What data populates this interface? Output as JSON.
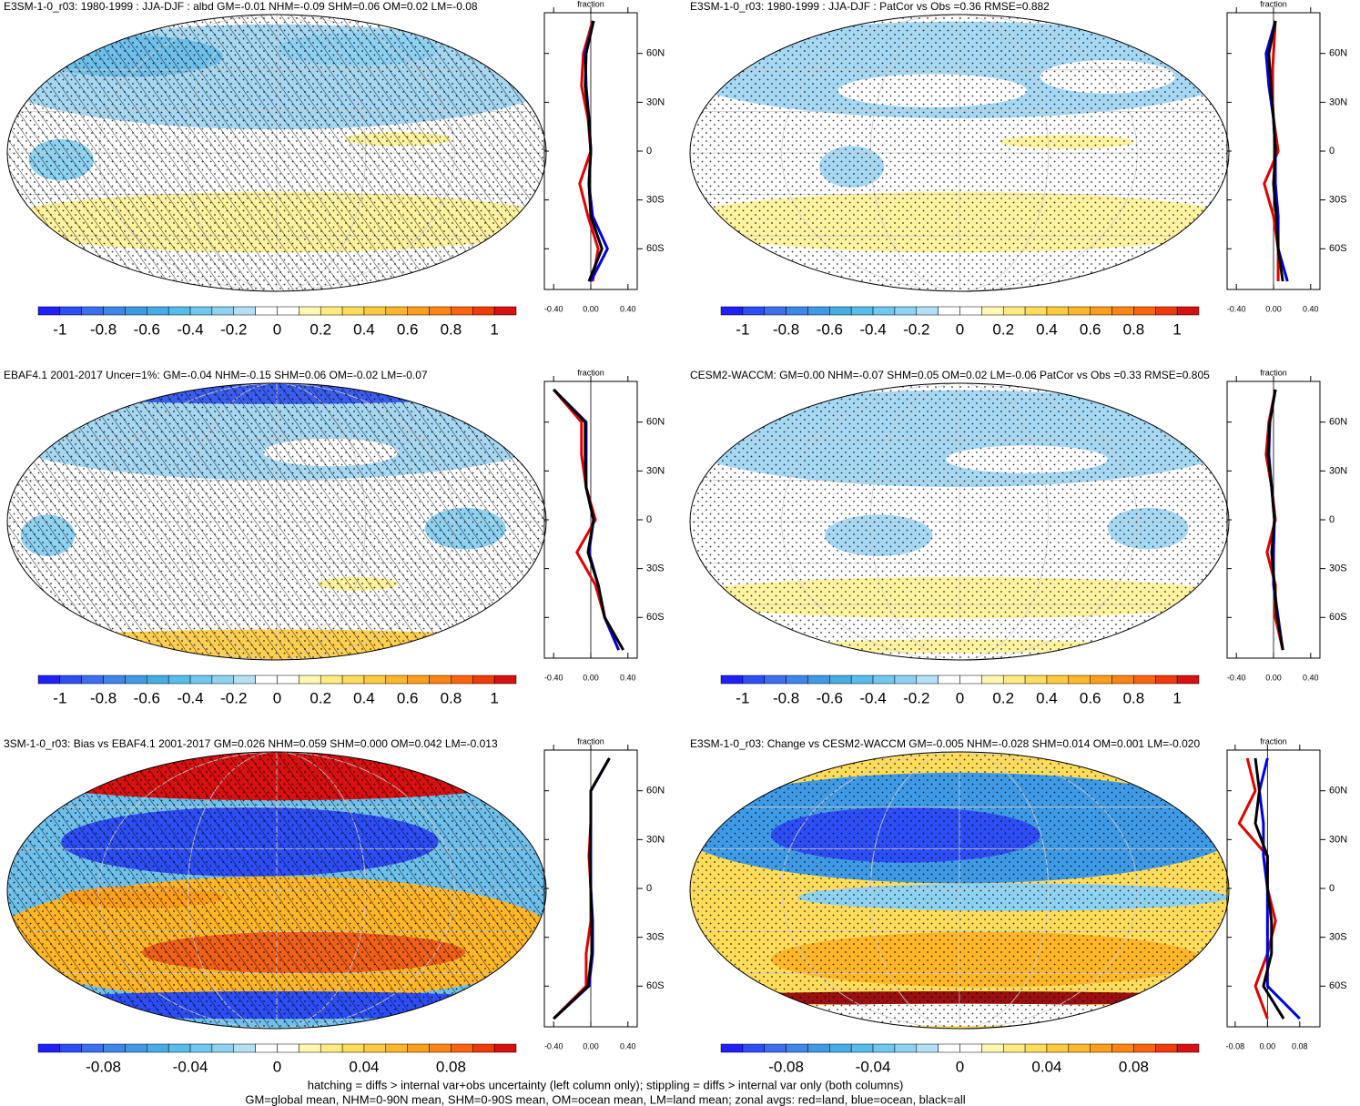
{
  "panels": [
    {
      "title": "E3SM-1-0_r03: 1980-1999 : JJA-DJF : albd GM=-0.01 NHM=-0.09 SHM=0.06 OM=0.02 LM=-0.08",
      "hatched": true,
      "colorbar": {
        "clim": [
          -1.1,
          1.1
        ],
        "ticks": [
          -1,
          -0.8,
          -0.6,
          -0.4,
          -0.2,
          0,
          0.2,
          0.4,
          0.6,
          0.8,
          1
        ],
        "colors": [
          "#1f1fff",
          "#2d4ef7",
          "#3c6ef0",
          "#3d86ea",
          "#3f9ae6",
          "#45ace6",
          "#55bcec",
          "#6ec8f0",
          "#8ed2f2",
          "#b4e0f5",
          "#ffffff",
          "#ffffff",
          "#fff8b0",
          "#ffeb80",
          "#ffdc5a",
          "#ffca3c",
          "#ffb628",
          "#ff9e1a",
          "#ff8412",
          "#ff640c",
          "#f03a08",
          "#d81010"
        ]
      },
      "zonal": {
        "type": "line",
        "x_label": "fraction",
        "xlim": [
          -0.5,
          0.5
        ],
        "xticks": [
          {
            "value": -0.4,
            "label": "-0.40"
          },
          {
            "value": 0,
            "label": "0.00"
          },
          {
            "value": 0.4,
            "label": "0.40"
          }
        ],
        "ylim": [
          -85,
          85
        ],
        "yticks": [
          {
            "value": 60,
            "label": "60N"
          },
          {
            "value": 30,
            "label": "30N"
          },
          0,
          {
            "value": -30,
            "label": "30S"
          },
          {
            "value": -60,
            "label": "60S"
          }
        ],
        "y": [
          -80,
          -60,
          -40,
          -20,
          0,
          20,
          40,
          60,
          80
        ],
        "series": [
          {
            "color": "#e00000",
            "values": [
              0.02,
              0.08,
              -0.03,
              -0.12,
              0.0,
              -0.03,
              -0.1,
              -0.08,
              0.02
            ]
          },
          {
            "color": "#0000e0",
            "values": [
              0.0,
              0.18,
              0.02,
              -0.02,
              0.0,
              -0.02,
              -0.05,
              -0.06,
              0.03
            ]
          },
          {
            "color": "#000000",
            "values": [
              -0.02,
              0.12,
              0.0,
              -0.02,
              0.0,
              -0.02,
              -0.06,
              -0.05,
              0.03
            ]
          }
        ]
      }
    },
    {
      "title": "E3SM-1-0_r03: 1980-1999 : JJA-DJF : PatCor vs Obs =0.36 RMSE=0.882",
      "hatched": false,
      "colorbar": {
        "clim": [
          -1.1,
          1.1
        ],
        "ticks": [
          -1,
          -0.8,
          -0.6,
          -0.4,
          -0.2,
          0,
          0.2,
          0.4,
          0.6,
          0.8,
          1
        ],
        "colors": [
          "#1f1fff",
          "#2d4ef7",
          "#3c6ef0",
          "#3d86ea",
          "#3f9ae6",
          "#45ace6",
          "#55bcec",
          "#6ec8f0",
          "#8ed2f2",
          "#b4e0f5",
          "#ffffff",
          "#ffffff",
          "#fff8b0",
          "#ffeb80",
          "#ffdc5a",
          "#ffca3c",
          "#ffb628",
          "#ff9e1a",
          "#ff8412",
          "#ff640c",
          "#f03a08",
          "#d81010"
        ]
      },
      "zonal": {
        "type": "line",
        "x_label": "fraction",
        "xlim": [
          -0.5,
          0.5
        ],
        "xticks": [
          {
            "value": -0.4,
            "label": "-0.40"
          },
          {
            "value": 0,
            "label": "0.00"
          },
          {
            "value": 0.4,
            "label": "0.40"
          }
        ],
        "ylim": [
          -85,
          85
        ],
        "yticks": [
          {
            "value": 60,
            "label": "60N"
          },
          {
            "value": 30,
            "label": "30N"
          },
          0,
          {
            "value": -30,
            "label": "30S"
          },
          {
            "value": -60,
            "label": "60S"
          }
        ],
        "y": [
          -80,
          -60,
          -40,
          -20,
          0,
          20,
          40,
          60,
          80
        ],
        "series": [
          {
            "color": "#e00000",
            "values": [
              0.05,
              0.05,
              0.0,
              -0.1,
              0.05,
              0.0,
              -0.02,
              0.0,
              0.02
            ]
          },
          {
            "color": "#0000e0",
            "values": [
              0.15,
              0.05,
              0.05,
              0.02,
              0.02,
              0.0,
              -0.05,
              -0.08,
              0.02
            ]
          },
          {
            "color": "#000000",
            "values": [
              0.1,
              0.05,
              0.03,
              0.0,
              0.02,
              0.0,
              -0.03,
              -0.05,
              0.02
            ]
          }
        ]
      }
    },
    {
      "title": "EBAF4.1 2001-2017 Uncer=1%: GM=-0.04 NHM=-0.15 SHM=0.06 OM=-0.02 LM=-0.07",
      "hatched": true,
      "colorbar": {
        "clim": [
          -1.1,
          1.1
        ],
        "ticks": [
          -1,
          -0.8,
          -0.6,
          -0.4,
          -0.2,
          0,
          0.2,
          0.4,
          0.6,
          0.8,
          1
        ],
        "colors": [
          "#1f1fff",
          "#2d4ef7",
          "#3c6ef0",
          "#3d86ea",
          "#3f9ae6",
          "#45ace6",
          "#55bcec",
          "#6ec8f0",
          "#8ed2f2",
          "#b4e0f5",
          "#ffffff",
          "#ffffff",
          "#fff8b0",
          "#ffeb80",
          "#ffdc5a",
          "#ffca3c",
          "#ffb628",
          "#ff9e1a",
          "#ff8412",
          "#ff640c",
          "#f03a08",
          "#d81010"
        ]
      },
      "zonal": {
        "type": "line",
        "x_label": "fraction",
        "xlim": [
          -0.5,
          0.5
        ],
        "xticks": [
          {
            "value": -0.4,
            "label": "-0.40"
          },
          {
            "value": 0,
            "label": "0.00"
          },
          {
            "value": 0.4,
            "label": "0.40"
          }
        ],
        "ylim": [
          -85,
          85
        ],
        "yticks": [
          {
            "value": 60,
            "label": "60N"
          },
          {
            "value": 30,
            "label": "30N"
          },
          0,
          {
            "value": -30,
            "label": "30S"
          },
          {
            "value": -60,
            "label": "60S"
          }
        ],
        "y": [
          -80,
          -60,
          -40,
          -20,
          0,
          20,
          40,
          60,
          80
        ],
        "series": [
          {
            "color": "#e00000",
            "values": [
              0.3,
              0.15,
              0.05,
              -0.15,
              0.05,
              -0.05,
              -0.1,
              -0.1,
              -0.4
            ]
          },
          {
            "color": "#0000e0",
            "values": [
              0.3,
              0.15,
              0.08,
              -0.02,
              0.03,
              -0.05,
              -0.05,
              -0.05,
              -0.4
            ]
          },
          {
            "color": "#000000",
            "values": [
              0.35,
              0.15,
              0.08,
              -0.03,
              0.03,
              -0.05,
              -0.06,
              -0.06,
              -0.4
            ]
          }
        ]
      }
    },
    {
      "title": "CESM2-WACCM: GM=0.00 NHM=-0.07 SHM=0.05 OM=0.02 LM=-0.06 PatCor vs Obs =0.33 RMSE=0.805",
      "hatched": false,
      "colorbar": {
        "clim": [
          -1.1,
          1.1
        ],
        "ticks": [
          -1,
          -0.8,
          -0.6,
          -0.4,
          -0.2,
          0,
          0.2,
          0.4,
          0.6,
          0.8,
          1
        ],
        "colors": [
          "#1f1fff",
          "#2d4ef7",
          "#3c6ef0",
          "#3d86ea",
          "#3f9ae6",
          "#45ace6",
          "#55bcec",
          "#6ec8f0",
          "#8ed2f2",
          "#b4e0f5",
          "#ffffff",
          "#ffffff",
          "#fff8b0",
          "#ffeb80",
          "#ffdc5a",
          "#ffca3c",
          "#ffb628",
          "#ff9e1a",
          "#ff8412",
          "#ff640c",
          "#f03a08",
          "#d81010"
        ]
      },
      "zonal": {
        "type": "line",
        "x_label": "fraction",
        "xlim": [
          -0.5,
          0.5
        ],
        "xticks": [
          {
            "value": -0.4,
            "label": "-0.40"
          },
          {
            "value": 0,
            "label": "0.00"
          },
          {
            "value": 0.4,
            "label": "0.40"
          }
        ],
        "ylim": [
          -85,
          85
        ],
        "yticks": [
          {
            "value": 60,
            "label": "60N"
          },
          {
            "value": 30,
            "label": "30N"
          },
          0,
          {
            "value": -30,
            "label": "30S"
          },
          {
            "value": -60,
            "label": "60S"
          }
        ],
        "y": [
          -80,
          -60,
          -40,
          -20,
          0,
          20,
          40,
          60,
          80
        ],
        "series": [
          {
            "color": "#e00000",
            "values": [
              0.1,
              0.02,
              0.02,
              -0.07,
              0.02,
              -0.02,
              -0.08,
              -0.05,
              0.02
            ]
          },
          {
            "color": "#0000e0",
            "values": [
              0.1,
              0.05,
              0.0,
              0.0,
              0.01,
              -0.02,
              -0.05,
              -0.04,
              0.02
            ]
          },
          {
            "color": "#000000",
            "values": [
              0.1,
              0.04,
              0.01,
              -0.02,
              0.01,
              -0.02,
              -0.06,
              -0.04,
              0.02
            ]
          }
        ]
      }
    },
    {
      "title": "3SM-1-0_r03: Bias vs EBAF4.1 2001-2017 GM=0.026 NHM=0.059 SHM=0.000 OM=0.042 LM=-0.013",
      "hatched": true,
      "colorbar": {
        "clim": [
          -0.11,
          0.11
        ],
        "ticks": [
          -0.08,
          -0.04,
          0,
          0.04,
          0.08
        ],
        "colors": [
          "#1f1fff",
          "#2d4ef7",
          "#3c6ef0",
          "#3d86ea",
          "#3f9ae6",
          "#45ace6",
          "#55bcec",
          "#6ec8f0",
          "#8ed2f2",
          "#b4e0f5",
          "#ffffff",
          "#ffffff",
          "#fff8b0",
          "#ffeb80",
          "#ffdc5a",
          "#ffca3c",
          "#ffb628",
          "#ff9e1a",
          "#ff8412",
          "#ff640c",
          "#f03a08",
          "#d81010"
        ]
      },
      "zonal": {
        "type": "line",
        "x_label": "fraction",
        "xlim": [
          -0.5,
          0.5
        ],
        "xticks": [
          {
            "value": -0.4,
            "label": "-0.40"
          },
          {
            "value": 0,
            "label": "0.00"
          },
          {
            "value": 0.4,
            "label": "0.40"
          }
        ],
        "ylim": [
          -85,
          85
        ],
        "yticks": [
          {
            "value": 60,
            "label": "60N"
          },
          {
            "value": 30,
            "label": "30N"
          },
          0,
          {
            "value": -30,
            "label": "30S"
          },
          {
            "value": -60,
            "label": "60S"
          }
        ],
        "y": [
          -80,
          -60,
          -40,
          -20,
          0,
          20,
          40,
          60,
          80
        ],
        "series": [
          {
            "color": "#e00000",
            "values": [
              -0.4,
              -0.05,
              -0.05,
              0.0,
              0.0,
              -0.02,
              0.0,
              0.0,
              0.2
            ]
          },
          {
            "color": "#0000e0",
            "values": [
              -0.4,
              -0.02,
              0.02,
              0.02,
              0.0,
              0.0,
              0.0,
              0.0,
              0.2
            ]
          },
          {
            "color": "#000000",
            "values": [
              -0.4,
              -0.03,
              0.01,
              0.01,
              0.0,
              -0.01,
              0.0,
              0.0,
              0.2
            ]
          }
        ]
      }
    },
    {
      "title": "E3SM-1-0_r03: Change vs CESM2-WACCM GM=-0.005 NHM=-0.028 SHM=0.014 OM=0.001 LM=-0.020",
      "hatched": false,
      "colorbar": {
        "clim": [
          -0.11,
          0.11
        ],
        "ticks": [
          -0.08,
          -0.04,
          0,
          0.04,
          0.08
        ],
        "colors": [
          "#1f1fff",
          "#2d4ef7",
          "#3c6ef0",
          "#3d86ea",
          "#3f9ae6",
          "#45ace6",
          "#55bcec",
          "#6ec8f0",
          "#8ed2f2",
          "#b4e0f5",
          "#ffffff",
          "#ffffff",
          "#fff8b0",
          "#ffeb80",
          "#ffdc5a",
          "#ffca3c",
          "#ffb628",
          "#ff9e1a",
          "#ff8412",
          "#ff640c",
          "#f03a08",
          "#d81010"
        ]
      },
      "zonal": {
        "type": "line",
        "x_label": "fraction",
        "xlim": [
          -0.1,
          0.13
        ],
        "xticks": [
          -0.08,
          {
            "value": 0,
            "label": "0.00"
          },
          0.08
        ],
        "ylim": [
          -85,
          85
        ],
        "yticks": [
          {
            "value": 60,
            "label": "60N"
          },
          {
            "value": 30,
            "label": "30N"
          },
          0,
          {
            "value": -30,
            "label": "30S"
          },
          {
            "value": -60,
            "label": "60S"
          }
        ],
        "y": [
          -80,
          -60,
          -40,
          -20,
          0,
          20,
          40,
          60,
          80
        ],
        "series": [
          {
            "color": "#e00000",
            "values": [
              0.0,
              -0.03,
              0.0,
              0.02,
              0.0,
              0.0,
              -0.07,
              -0.03,
              -0.05
            ]
          },
          {
            "color": "#0000e0",
            "values": [
              0.08,
              0.0,
              0.0,
              0.0,
              0.0,
              -0.01,
              -0.01,
              -0.02,
              0.0
            ]
          },
          {
            "color": "#000000",
            "values": [
              0.04,
              -0.01,
              0.01,
              0.01,
              0.0,
              0.0,
              -0.03,
              -0.02,
              -0.03
            ]
          }
        ]
      }
    }
  ],
  "footnote": [
    "hatching = diffs > internal var+obs uncertainty (left column only); stippling = diffs > internal var only (both columns)",
    "GM=global mean, NHM=0-90N mean, SHM=0-90S mean, OM=ocean mean, LM=land mean; zonal avgs: red=land, blue=ocean, black=all"
  ]
}
